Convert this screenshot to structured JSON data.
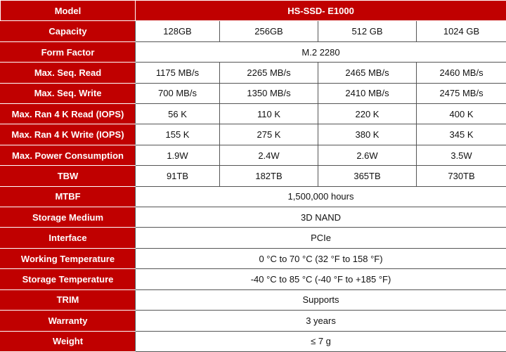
{
  "header": {
    "label": "Model",
    "value": "HS-SSD- E1000"
  },
  "rows": [
    {
      "label": "Capacity",
      "cells": [
        "128GB",
        "256GB",
        "512 GB",
        "1024 GB"
      ]
    },
    {
      "label": "Form Factor",
      "cells": [
        "M.2 2280"
      ]
    },
    {
      "label": "Max. Seq. Read",
      "cells": [
        "1175 MB/s",
        "2265 MB/s",
        "2465 MB/s",
        "2460 MB/s"
      ]
    },
    {
      "label": "Max. Seq. Write",
      "cells": [
        "700 MB/s",
        "1350 MB/s",
        "2410 MB/s",
        "2475 MB/s"
      ]
    },
    {
      "label": "Max. Ran 4 K Read (IOPS)",
      "cells": [
        "56 K",
        "110 K",
        "220 K",
        "400 K"
      ]
    },
    {
      "label": "Max. Ran 4 K Write (IOPS)",
      "cells": [
        "155 K",
        "275 K",
        "380 K",
        "345 K"
      ]
    },
    {
      "label": "Max. Power Consumption",
      "cells": [
        "1.9W",
        "2.4W",
        "2.6W",
        "3.5W"
      ]
    },
    {
      "label": "TBW",
      "cells": [
        "91TB",
        "182TB",
        "365TB",
        "730TB"
      ]
    },
    {
      "label": "MTBF",
      "cells": [
        "1,500,000 hours"
      ]
    },
    {
      "label": "Storage Medium",
      "cells": [
        "3D NAND"
      ]
    },
    {
      "label": "Interface",
      "cells": [
        "PCIe"
      ]
    },
    {
      "label": "Working Temperature",
      "cells": [
        "0 °C to 70 °C (32 °F to 158 °F)"
      ]
    },
    {
      "label": "Storage Temperature",
      "cells": [
        "-40 °C to 85 °C (-40 °F to +185 °F)"
      ]
    },
    {
      "label": "TRIM",
      "cells": [
        "Supports"
      ]
    },
    {
      "label": "Warranty",
      "cells": [
        "3 years"
      ]
    },
    {
      "label": "Weight",
      "cells": [
        "≤ 7 g"
      ]
    }
  ]
}
